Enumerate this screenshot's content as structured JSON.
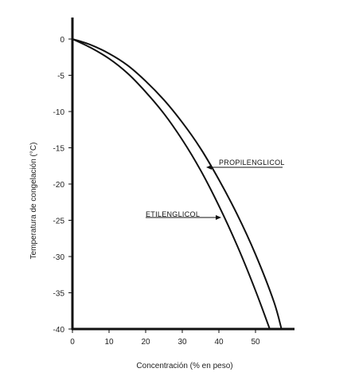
{
  "chart_data": {
    "type": "line",
    "xlabel": "Concentración (% en peso)",
    "ylabel": "Temperatura de congelación (°C)",
    "xlim": [
      0,
      60
    ],
    "ylim": [
      -40,
      3
    ],
    "xticks": [
      0,
      10,
      20,
      30,
      40,
      50
    ],
    "xtick_labels": [
      "0",
      "10",
      "20",
      "30",
      "40",
      "50"
    ],
    "yticks": [
      0,
      -5,
      -10,
      -15,
      -20,
      -25,
      -30,
      -35,
      -40
    ],
    "ytick_labels": [
      "0",
      "-5",
      "-10",
      "-15",
      "-20",
      "-25",
      "-30",
      "-35",
      "-40"
    ],
    "grid": false,
    "legend": "none",
    "series": [
      {
        "name": "PROPILENGLICOL",
        "x": [
          0,
          5,
          10,
          15,
          20,
          25,
          30,
          35,
          40,
          45,
          50,
          55,
          57.1
        ],
        "y": [
          0,
          -0.8,
          -2.0,
          -3.6,
          -5.8,
          -8.4,
          -11.5,
          -15.1,
          -19.4,
          -24.2,
          -29.7,
          -36.2,
          -40
        ]
      },
      {
        "name": "ETILENGLICOL",
        "x": [
          0,
          5,
          10,
          15,
          20,
          25,
          30,
          35,
          40,
          45,
          50,
          53.9
        ],
        "y": [
          0,
          -1.2,
          -2.7,
          -4.7,
          -7.3,
          -10.3,
          -13.9,
          -18.1,
          -23.0,
          -28.5,
          -34.7,
          -40
        ]
      }
    ]
  }
}
